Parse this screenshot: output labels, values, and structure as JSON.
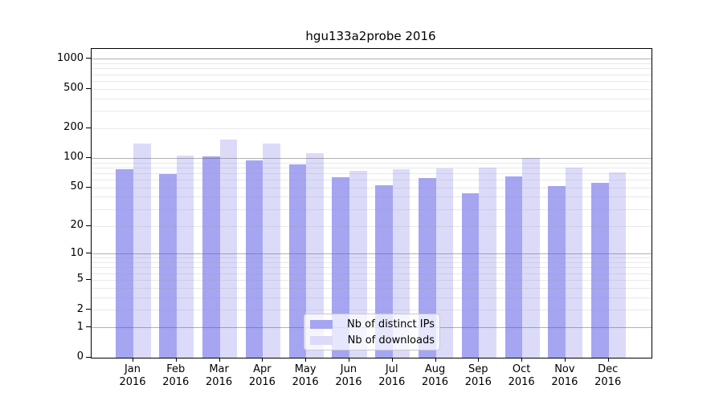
{
  "chart_data": {
    "type": "bar",
    "title": "hgu133a2probe 2016",
    "scale": "log1p",
    "categories": [
      "Jan",
      "Feb",
      "Mar",
      "Apr",
      "May",
      "Jun",
      "Jul",
      "Aug",
      "Sep",
      "Oct",
      "Nov",
      "Dec"
    ],
    "year_label": "2016",
    "series": [
      {
        "name": "Nb of distinct IPs",
        "color": "#a5a5f2",
        "values": [
          78,
          69,
          105,
          96,
          87,
          64,
          53,
          63,
          44,
          65,
          52,
          56
        ]
      },
      {
        "name": "Nb of downloads",
        "color": "#dbdbf9",
        "values": [
          140,
          107,
          154,
          142,
          113,
          74,
          77,
          79,
          80,
          100,
          80,
          72
        ]
      }
    ],
    "yticks": [
      1000,
      500,
      200,
      100,
      50,
      20,
      10,
      5,
      2,
      1,
      0
    ],
    "ylim": [
      0,
      1270
    ],
    "grid": {
      "major_values": [
        1,
        10,
        100,
        1000
      ],
      "minor_values": [
        2,
        3,
        4,
        5,
        6,
        7,
        8,
        9,
        20,
        30,
        40,
        50,
        60,
        70,
        80,
        90,
        200,
        300,
        400,
        500,
        600,
        700,
        800,
        900
      ]
    },
    "legend_position": "lower center",
    "axis_color": "#000000",
    "grid_major_color": "#b1b1b1",
    "grid_minor_color": "#e8e8e8"
  }
}
